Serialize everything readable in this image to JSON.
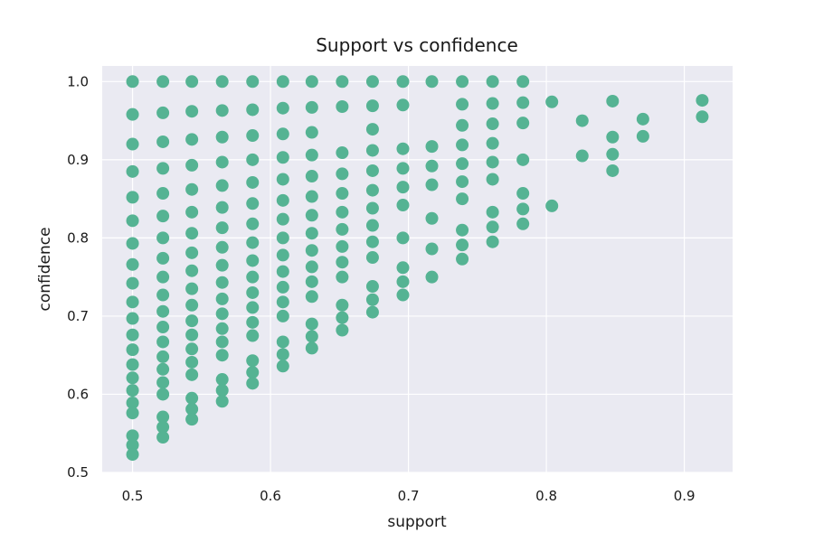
{
  "chart_data": {
    "type": "scatter",
    "title": "Support vs confidence",
    "xlabel": "support",
    "ylabel": "confidence",
    "xlim": [
      0.478,
      0.935
    ],
    "ylim": [
      0.5,
      1.02
    ],
    "xticks": [
      0.5,
      0.6,
      0.7,
      0.8,
      0.9
    ],
    "yticks": [
      0.5,
      0.6,
      0.7,
      0.8,
      0.9,
      1.0
    ],
    "xtick_labels": [
      "0.5",
      "0.6",
      "0.7",
      "0.8",
      "0.9"
    ],
    "ytick_labels": [
      "0.5",
      "0.6",
      "0.7",
      "0.8",
      "0.9",
      "1.0"
    ],
    "grid": true,
    "legend": "none",
    "colors": {
      "background": "#eaeaf2",
      "grid": "#ffffff",
      "point": "#55b393"
    },
    "series": [
      {
        "points": [
          [
            0.5,
            1.0
          ],
          [
            0.5,
            0.958
          ],
          [
            0.5,
            0.92
          ],
          [
            0.5,
            0.885
          ],
          [
            0.5,
            0.852
          ],
          [
            0.5,
            0.822
          ],
          [
            0.5,
            0.793
          ],
          [
            0.5,
            0.766
          ],
          [
            0.5,
            0.742
          ],
          [
            0.5,
            0.718
          ],
          [
            0.5,
            0.697
          ],
          [
            0.5,
            0.676
          ],
          [
            0.5,
            0.657
          ],
          [
            0.5,
            0.638
          ],
          [
            0.5,
            0.621
          ],
          [
            0.5,
            0.605
          ],
          [
            0.5,
            0.589
          ],
          [
            0.5,
            0.576
          ],
          [
            0.5,
            0.547
          ],
          [
            0.5,
            0.535
          ],
          [
            0.5,
            0.523
          ],
          [
            0.522,
            1.0
          ],
          [
            0.522,
            0.96
          ],
          [
            0.522,
            0.923
          ],
          [
            0.522,
            0.889
          ],
          [
            0.522,
            0.857
          ],
          [
            0.522,
            0.828
          ],
          [
            0.522,
            0.8
          ],
          [
            0.522,
            0.774
          ],
          [
            0.522,
            0.75
          ],
          [
            0.522,
            0.727
          ],
          [
            0.522,
            0.706
          ],
          [
            0.522,
            0.686
          ],
          [
            0.522,
            0.667
          ],
          [
            0.522,
            0.648
          ],
          [
            0.522,
            0.632
          ],
          [
            0.522,
            0.615
          ],
          [
            0.522,
            0.6
          ],
          [
            0.522,
            0.571
          ],
          [
            0.522,
            0.558
          ],
          [
            0.522,
            0.545
          ],
          [
            0.543,
            1.0
          ],
          [
            0.543,
            0.962
          ],
          [
            0.543,
            0.926
          ],
          [
            0.543,
            0.893
          ],
          [
            0.543,
            0.862
          ],
          [
            0.543,
            0.833
          ],
          [
            0.543,
            0.806
          ],
          [
            0.543,
            0.781
          ],
          [
            0.543,
            0.758
          ],
          [
            0.543,
            0.735
          ],
          [
            0.543,
            0.714
          ],
          [
            0.543,
            0.694
          ],
          [
            0.543,
            0.676
          ],
          [
            0.543,
            0.658
          ],
          [
            0.543,
            0.641
          ],
          [
            0.543,
            0.625
          ],
          [
            0.543,
            0.595
          ],
          [
            0.543,
            0.581
          ],
          [
            0.543,
            0.568
          ],
          [
            0.565,
            1.0
          ],
          [
            0.565,
            0.963
          ],
          [
            0.565,
            0.929
          ],
          [
            0.565,
            0.897
          ],
          [
            0.565,
            0.867
          ],
          [
            0.565,
            0.839
          ],
          [
            0.565,
            0.813
          ],
          [
            0.565,
            0.788
          ],
          [
            0.565,
            0.765
          ],
          [
            0.565,
            0.743
          ],
          [
            0.565,
            0.722
          ],
          [
            0.565,
            0.703
          ],
          [
            0.565,
            0.684
          ],
          [
            0.565,
            0.667
          ],
          [
            0.565,
            0.65
          ],
          [
            0.565,
            0.619
          ],
          [
            0.565,
            0.605
          ],
          [
            0.565,
            0.591
          ],
          [
            0.587,
            1.0
          ],
          [
            0.587,
            0.964
          ],
          [
            0.587,
            0.931
          ],
          [
            0.587,
            0.9
          ],
          [
            0.587,
            0.871
          ],
          [
            0.587,
            0.844
          ],
          [
            0.587,
            0.818
          ],
          [
            0.587,
            0.794
          ],
          [
            0.587,
            0.771
          ],
          [
            0.587,
            0.75
          ],
          [
            0.587,
            0.73
          ],
          [
            0.587,
            0.711
          ],
          [
            0.587,
            0.692
          ],
          [
            0.587,
            0.675
          ],
          [
            0.587,
            0.643
          ],
          [
            0.587,
            0.628
          ],
          [
            0.587,
            0.614
          ],
          [
            0.609,
            1.0
          ],
          [
            0.609,
            0.966
          ],
          [
            0.609,
            0.933
          ],
          [
            0.609,
            0.903
          ],
          [
            0.609,
            0.875
          ],
          [
            0.609,
            0.848
          ],
          [
            0.609,
            0.824
          ],
          [
            0.609,
            0.8
          ],
          [
            0.609,
            0.778
          ],
          [
            0.609,
            0.757
          ],
          [
            0.609,
            0.737
          ],
          [
            0.609,
            0.718
          ],
          [
            0.609,
            0.7
          ],
          [
            0.609,
            0.667
          ],
          [
            0.609,
            0.651
          ],
          [
            0.609,
            0.636
          ],
          [
            0.63,
            1.0
          ],
          [
            0.63,
            0.967
          ],
          [
            0.63,
            0.935
          ],
          [
            0.63,
            0.906
          ],
          [
            0.63,
            0.879
          ],
          [
            0.63,
            0.853
          ],
          [
            0.63,
            0.829
          ],
          [
            0.63,
            0.806
          ],
          [
            0.63,
            0.784
          ],
          [
            0.63,
            0.763
          ],
          [
            0.63,
            0.744
          ],
          [
            0.63,
            0.725
          ],
          [
            0.63,
            0.69
          ],
          [
            0.63,
            0.674
          ],
          [
            0.63,
            0.659
          ],
          [
            0.652,
            1.0
          ],
          [
            0.652,
            0.968
          ],
          [
            0.652,
            0.909
          ],
          [
            0.652,
            0.882
          ],
          [
            0.652,
            0.857
          ],
          [
            0.652,
            0.833
          ],
          [
            0.652,
            0.811
          ],
          [
            0.652,
            0.789
          ],
          [
            0.652,
            0.769
          ],
          [
            0.652,
            0.75
          ],
          [
            0.652,
            0.714
          ],
          [
            0.652,
            0.698
          ],
          [
            0.652,
            0.682
          ],
          [
            0.674,
            1.0
          ],
          [
            0.674,
            0.969
          ],
          [
            0.674,
            0.939
          ],
          [
            0.674,
            0.912
          ],
          [
            0.674,
            0.886
          ],
          [
            0.674,
            0.861
          ],
          [
            0.674,
            0.838
          ],
          [
            0.674,
            0.816
          ],
          [
            0.674,
            0.795
          ],
          [
            0.674,
            0.775
          ],
          [
            0.674,
            0.738
          ],
          [
            0.674,
            0.721
          ],
          [
            0.674,
            0.705
          ],
          [
            0.696,
            1.0
          ],
          [
            0.696,
            0.97
          ],
          [
            0.696,
            0.914
          ],
          [
            0.696,
            0.889
          ],
          [
            0.696,
            0.865
          ],
          [
            0.696,
            0.842
          ],
          [
            0.696,
            0.8
          ],
          [
            0.696,
            0.762
          ],
          [
            0.696,
            0.744
          ],
          [
            0.696,
            0.727
          ],
          [
            0.717,
            1.0
          ],
          [
            0.717,
            0.917
          ],
          [
            0.717,
            0.892
          ],
          [
            0.717,
            0.868
          ],
          [
            0.717,
            0.825
          ],
          [
            0.717,
            0.786
          ],
          [
            0.717,
            0.75
          ],
          [
            0.739,
            1.0
          ],
          [
            0.739,
            0.971
          ],
          [
            0.739,
            0.944
          ],
          [
            0.739,
            0.919
          ],
          [
            0.739,
            0.895
          ],
          [
            0.739,
            0.872
          ],
          [
            0.739,
            0.85
          ],
          [
            0.739,
            0.81
          ],
          [
            0.739,
            0.791
          ],
          [
            0.739,
            0.773
          ],
          [
            0.761,
            1.0
          ],
          [
            0.761,
            0.972
          ],
          [
            0.761,
            0.946
          ],
          [
            0.761,
            0.921
          ],
          [
            0.761,
            0.897
          ],
          [
            0.761,
            0.875
          ],
          [
            0.761,
            0.833
          ],
          [
            0.761,
            0.814
          ],
          [
            0.761,
            0.795
          ],
          [
            0.783,
            1.0
          ],
          [
            0.783,
            0.973
          ],
          [
            0.783,
            0.947
          ],
          [
            0.783,
            0.9
          ],
          [
            0.783,
            0.857
          ],
          [
            0.783,
            0.837
          ],
          [
            0.783,
            0.818
          ],
          [
            0.804,
            0.974
          ],
          [
            0.804,
            0.841
          ],
          [
            0.826,
            0.95
          ],
          [
            0.826,
            0.905
          ],
          [
            0.848,
            0.975
          ],
          [
            0.848,
            0.929
          ],
          [
            0.848,
            0.907
          ],
          [
            0.848,
            0.886
          ],
          [
            0.87,
            0.952
          ],
          [
            0.87,
            0.93
          ],
          [
            0.913,
            0.976
          ],
          [
            0.913,
            0.955
          ]
        ]
      }
    ]
  }
}
